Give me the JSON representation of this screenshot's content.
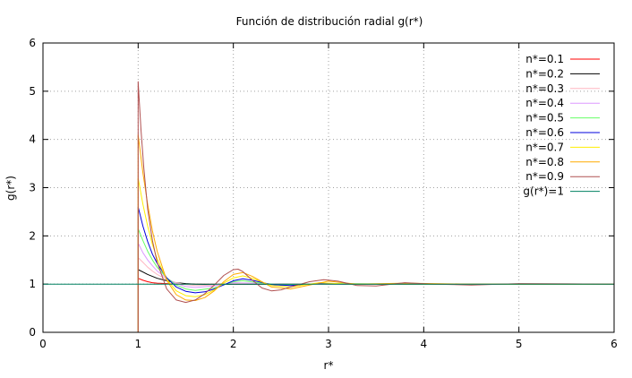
{
  "chart_data": {
    "type": "line",
    "title": "Función de distribución radial g(r*)",
    "xlabel": "r*",
    "ylabel": "g(r*)",
    "xlim": [
      0,
      6
    ],
    "ylim": [
      0,
      6
    ],
    "xticks": [
      "0",
      "1",
      "2",
      "3",
      "4",
      "5",
      "6"
    ],
    "yticks": [
      "0",
      "1",
      "2",
      "3",
      "4",
      "5",
      "6"
    ],
    "grid": true,
    "legend_position": "top-right",
    "series": [
      {
        "name": "n*=0.1",
        "color": "#ff0000",
        "x": [
          1.0,
          1.05,
          1.1,
          1.15,
          1.2,
          1.3,
          1.4,
          1.5,
          1.6,
          1.8,
          2.0,
          2.5,
          3.0,
          4.0,
          5.0,
          6.0
        ],
        "y": [
          1.12,
          1.08,
          1.05,
          1.03,
          1.02,
          1.01,
          1.0,
          1.0,
          1.0,
          1.0,
          1.0,
          1.0,
          1.0,
          1.0,
          1.0,
          1.0
        ]
      },
      {
        "name": "n*=0.2",
        "color": "#000000",
        "x": [
          1.0,
          1.05,
          1.1,
          1.15,
          1.2,
          1.3,
          1.4,
          1.5,
          1.6,
          1.8,
          2.0,
          2.5,
          3.0,
          4.0,
          5.0,
          6.0
        ],
        "y": [
          1.3,
          1.25,
          1.2,
          1.16,
          1.12,
          1.07,
          1.03,
          1.01,
          1.0,
          0.99,
          1.0,
          1.0,
          1.0,
          1.0,
          1.0,
          1.0
        ]
      },
      {
        "name": "n*=0.3",
        "color": "#ffb6c1",
        "x": [
          1.0,
          1.05,
          1.1,
          1.15,
          1.2,
          1.3,
          1.4,
          1.5,
          1.6,
          1.8,
          2.0,
          2.2,
          2.5,
          3.0,
          4.0,
          5.0,
          6.0
        ],
        "y": [
          1.55,
          1.45,
          1.35,
          1.27,
          1.2,
          1.1,
          1.03,
          0.99,
          0.97,
          0.98,
          1.01,
          1.01,
          1.0,
          1.0,
          1.0,
          1.0,
          1.0
        ]
      },
      {
        "name": "n*=0.4",
        "color": "#dd99ff",
        "x": [
          1.0,
          1.05,
          1.1,
          1.15,
          1.2,
          1.3,
          1.4,
          1.5,
          1.6,
          1.8,
          2.0,
          2.2,
          2.5,
          3.0,
          4.0,
          5.0,
          6.0
        ],
        "y": [
          1.85,
          1.65,
          1.5,
          1.38,
          1.27,
          1.12,
          1.01,
          0.95,
          0.93,
          0.96,
          1.03,
          1.02,
          0.99,
          1.0,
          1.0,
          1.0,
          1.0
        ]
      },
      {
        "name": "n*=0.5",
        "color": "#66ff66",
        "x": [
          1.0,
          1.05,
          1.1,
          1.15,
          1.2,
          1.3,
          1.4,
          1.5,
          1.6,
          1.8,
          2.0,
          2.1,
          2.3,
          2.5,
          2.8,
          3.0,
          4.0,
          5.0,
          6.0
        ],
        "y": [
          2.15,
          1.9,
          1.68,
          1.5,
          1.35,
          1.13,
          0.98,
          0.9,
          0.87,
          0.92,
          1.05,
          1.07,
          1.02,
          0.98,
          1.0,
          1.01,
          1.0,
          1.0,
          1.0
        ]
      },
      {
        "name": "n*=0.6",
        "color": "#0000dd",
        "x": [
          1.0,
          1.05,
          1.1,
          1.15,
          1.2,
          1.3,
          1.4,
          1.5,
          1.6,
          1.7,
          1.8,
          2.0,
          2.1,
          2.2,
          2.4,
          2.6,
          2.9,
          3.2,
          4.0,
          5.0,
          6.0
        ],
        "y": [
          2.6,
          2.2,
          1.88,
          1.62,
          1.43,
          1.13,
          0.94,
          0.85,
          0.82,
          0.84,
          0.9,
          1.07,
          1.11,
          1.08,
          0.99,
          0.97,
          1.01,
          1.0,
          1.0,
          1.0,
          1.0
        ]
      },
      {
        "name": "n*=0.7",
        "color": "#ffee00",
        "x": [
          1.0,
          1.05,
          1.1,
          1.15,
          1.2,
          1.3,
          1.4,
          1.5,
          1.6,
          1.7,
          1.8,
          1.9,
          2.0,
          2.1,
          2.2,
          2.4,
          2.6,
          2.9,
          3.2,
          4.0,
          5.0,
          6.0
        ],
        "y": [
          3.2,
          2.65,
          2.2,
          1.82,
          1.52,
          1.1,
          0.86,
          0.76,
          0.74,
          0.78,
          0.88,
          1.02,
          1.13,
          1.17,
          1.12,
          0.97,
          0.94,
          1.03,
          1.0,
          1.0,
          1.0,
          1.0
        ]
      },
      {
        "name": "n*=0.8",
        "color": "#ffaa00",
        "x": [
          1.0,
          1.05,
          1.1,
          1.15,
          1.2,
          1.3,
          1.4,
          1.5,
          1.6,
          1.7,
          1.8,
          1.9,
          2.0,
          2.1,
          2.2,
          2.4,
          2.6,
          2.8,
          3.0,
          3.3,
          3.8,
          4.5,
          6.0
        ],
        "y": [
          4.1,
          3.3,
          2.65,
          2.1,
          1.68,
          1.08,
          0.78,
          0.67,
          0.66,
          0.72,
          0.86,
          1.05,
          1.2,
          1.24,
          1.16,
          0.94,
          0.9,
          0.98,
          1.06,
          1.0,
          1.02,
          1.0,
          1.0
        ]
      },
      {
        "name": "n*=0.9",
        "color": "#b05050",
        "x": [
          1.0,
          1.03,
          1.06,
          1.1,
          1.15,
          1.2,
          1.3,
          1.4,
          1.5,
          1.6,
          1.7,
          1.8,
          1.9,
          2.0,
          2.05,
          2.1,
          2.2,
          2.3,
          2.4,
          2.5,
          2.6,
          2.8,
          2.95,
          3.1,
          3.3,
          3.5,
          3.8,
          4.1,
          4.5,
          5.0,
          6.0
        ],
        "y": [
          5.2,
          4.2,
          3.4,
          2.55,
          1.9,
          1.45,
          0.9,
          0.67,
          0.62,
          0.67,
          0.8,
          0.98,
          1.18,
          1.3,
          1.31,
          1.26,
          1.08,
          0.92,
          0.86,
          0.88,
          0.94,
          1.05,
          1.09,
          1.06,
          0.97,
          0.96,
          1.03,
          1.0,
          0.98,
          1.01,
          1.0
        ]
      },
      {
        "name": "g(r*)=1",
        "color": "#008060",
        "x": [
          0,
          6
        ],
        "y": [
          1,
          1
        ]
      }
    ]
  }
}
